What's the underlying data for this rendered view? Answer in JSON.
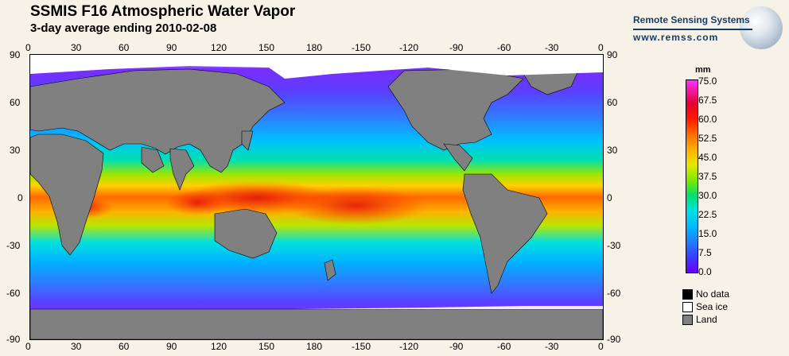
{
  "header": {
    "title": "SSMIS F16 Atmospheric Water Vapor",
    "subtitle": "3-day average ending 2010-02-08"
  },
  "logo": {
    "name": "Remote Sensing Systems",
    "url": "www.remss.com"
  },
  "axes": {
    "lon_labels": [
      "0",
      "30",
      "60",
      "90",
      "120",
      "150",
      "180",
      "-150",
      "-120",
      "-90",
      "-60",
      "-30",
      "0"
    ],
    "lat_labels": [
      "90",
      "60",
      "30",
      "0",
      "-30",
      "-60",
      "-90"
    ]
  },
  "colorbar": {
    "unit": "mm",
    "ticks": [
      "75.0",
      "67.5",
      "60.0",
      "52.5",
      "45.0",
      "37.5",
      "30.0",
      "22.5",
      "15.0",
      "7.5",
      "0.0"
    ],
    "min": 0,
    "max": 75
  },
  "legend": {
    "items": [
      {
        "label": "No data",
        "color": "#000000"
      },
      {
        "label": "Sea ice",
        "color": "#ffffff"
      },
      {
        "label": "Land",
        "color": "#808080"
      }
    ]
  },
  "colors": {
    "background": "#f6f2e8",
    "land": "#808080",
    "sea_ice": "#ffffff",
    "no_data": "#000000"
  }
}
